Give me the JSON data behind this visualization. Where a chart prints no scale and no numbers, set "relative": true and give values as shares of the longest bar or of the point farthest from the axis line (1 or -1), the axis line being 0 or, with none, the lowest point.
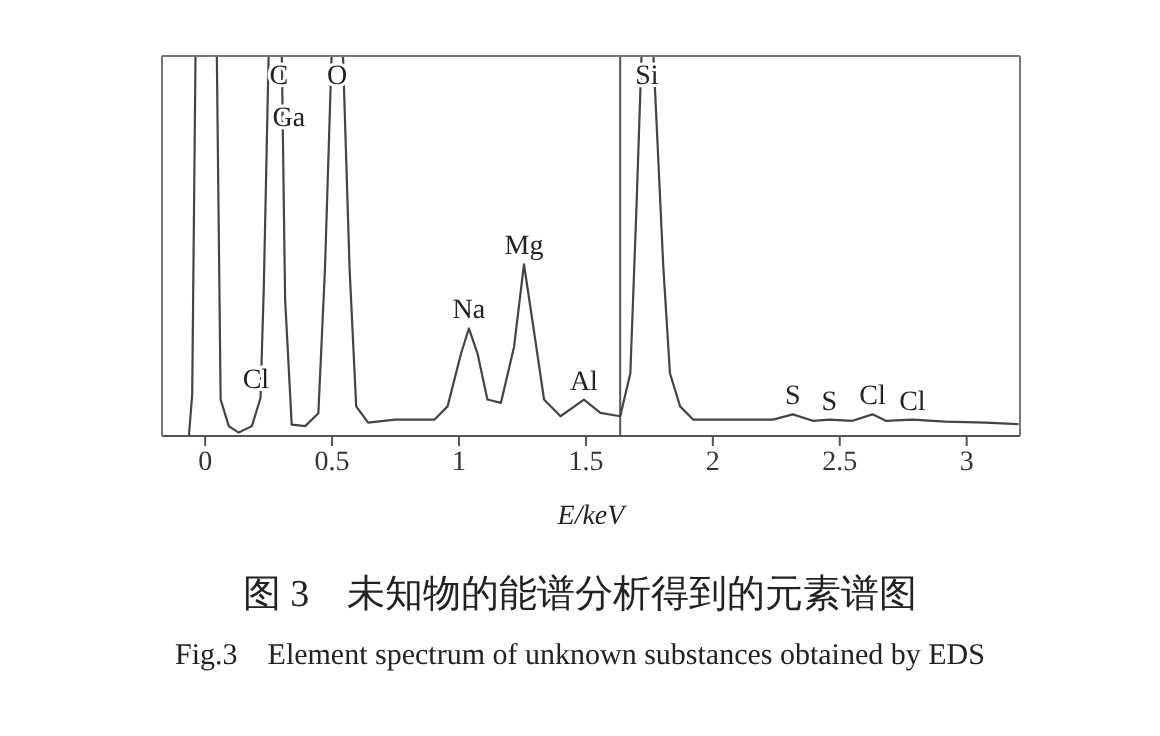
{
  "chart_data": {
    "type": "line",
    "title": "图 3　未知物的能谱分析得到的元素谱图",
    "subtitle": "Fig.3　Element spectrum of unknown substances obtained by EDS",
    "xlabel": "E/keV",
    "relative": true,
    "marker": "none",
    "grid": false,
    "legend": false,
    "xlim": [
      -0.17,
      3.21
    ],
    "xticks": [
      0,
      0.5,
      1,
      1.5,
      2,
      2.5,
      3
    ],
    "series": [
      {
        "color": "#444444",
        "x": [
          -0.064,
          -0.051,
          -0.038,
          0.046,
          0.061,
          0.093,
          0.132,
          0.184,
          0.218,
          0.231,
          0.25,
          0.302,
          0.315,
          0.341,
          0.394,
          0.446,
          0.472,
          0.498,
          0.543,
          0.569,
          0.595,
          0.642,
          0.747,
          0.903,
          0.955,
          1.008,
          1.039,
          1.073,
          1.112,
          1.165,
          1.217,
          1.256,
          1.29,
          1.335,
          1.4,
          1.492,
          1.557,
          1.635,
          1.675,
          1.7,
          1.719,
          1.766,
          1.805,
          1.831,
          1.871,
          1.923,
          2.08,
          2.237,
          2.315,
          2.394,
          2.459,
          2.55,
          2.629,
          2.681,
          2.786,
          2.916,
          3.073,
          3.204
        ],
        "values": [
          0,
          0.11,
          1,
          1,
          0.096,
          0.026,
          0.009,
          0.026,
          0.1,
          0.39,
          1,
          1,
          0.36,
          0.03,
          0.026,
          0.06,
          0.44,
          1,
          1,
          0.44,
          0.078,
          0.035,
          0.043,
          0.043,
          0.078,
          0.217,
          0.283,
          0.217,
          0.096,
          0.087,
          0.235,
          0.452,
          0.3,
          0.096,
          0.052,
          0.096,
          0.061,
          0.052,
          0.165,
          0.617,
          1,
          1,
          0.443,
          0.165,
          0.078,
          0.043,
          0.043,
          0.043,
          0.057,
          0.04,
          0.043,
          0.04,
          0.057,
          0.04,
          0.043,
          0.038,
          0.035,
          0.031
        ]
      }
    ],
    "ref_lines": [
      {
        "axis": "x",
        "value": 1.635,
        "color": "#555555"
      }
    ],
    "annotations": [
      {
        "text": "Cl",
        "x": 0.2,
        "y": 0.1
      },
      {
        "text": "C",
        "x": 0.29,
        "y": 0.9
      },
      {
        "text": "Ga",
        "x": 0.33,
        "y": 0.79
      },
      {
        "text": "O",
        "x": 0.52,
        "y": 0.9
      },
      {
        "text": "Na",
        "x": 1.039,
        "y": 0.283
      },
      {
        "text": "Mg",
        "x": 1.256,
        "y": 0.452
      },
      {
        "text": "Al",
        "x": 1.492,
        "y": 0.096
      },
      {
        "text": "Si",
        "x": 1.74,
        "y": 0.9
      },
      {
        "text": "S",
        "x": 2.315,
        "y": 0.057
      },
      {
        "text": "S",
        "x": 2.459,
        "y": 0.043
      },
      {
        "text": "Cl",
        "x": 2.629,
        "y": 0.057
      },
      {
        "text": "Cl",
        "x": 2.786,
        "y": 0.043
      }
    ]
  }
}
